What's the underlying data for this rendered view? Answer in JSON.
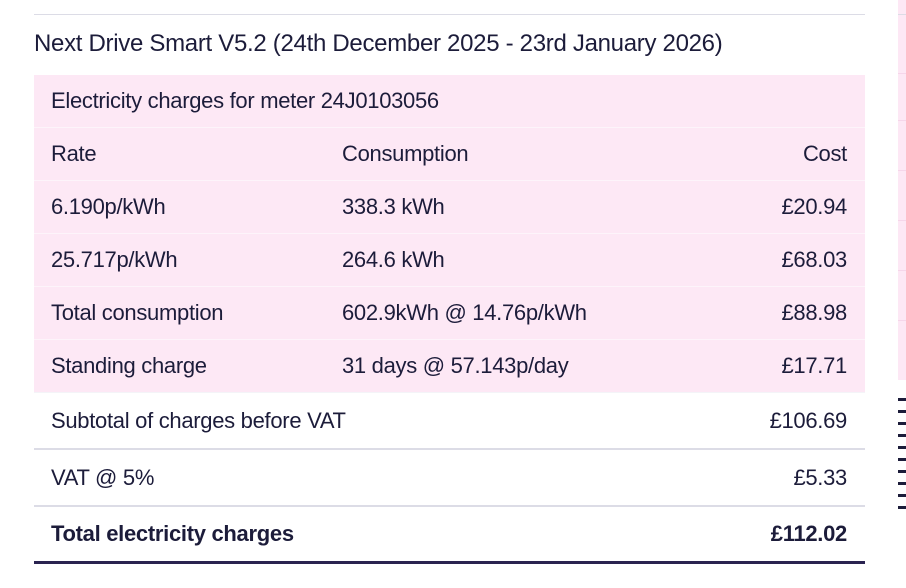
{
  "bill": {
    "title": "Next Drive Smart V5.2 (24th December 2025 - 23rd January 2026)",
    "meter_heading": "Electricity charges for meter 24J0103056",
    "columns": {
      "rate": "Rate",
      "consumption": "Consumption",
      "cost": "Cost"
    },
    "rates": [
      {
        "rate": "6.190p/kWh",
        "consumption": "338.3 kWh",
        "cost": "£20.94"
      },
      {
        "rate": "25.717p/kWh",
        "consumption": "264.6 kWh",
        "cost": "£68.03"
      }
    ],
    "total_consumption": {
      "label": "Total consumption",
      "detail": "602.9kWh @ 14.76p/kWh",
      "cost": "£88.98"
    },
    "standing_charge": {
      "label": "Standing charge",
      "detail": "31 days @ 57.143p/day",
      "cost": "£17.71"
    },
    "subtotal": {
      "label": "Subtotal of charges before VAT",
      "cost": "£106.69"
    },
    "vat": {
      "label": "VAT @ 5%",
      "cost": "£5.33"
    },
    "total": {
      "label": "Total electricity charges",
      "cost": "£112.02"
    }
  },
  "colors": {
    "pink_background": "#fde8f5",
    "text": "#1c1c3a",
    "total_rule": "#2a2350",
    "divider": "#dcdce6"
  }
}
